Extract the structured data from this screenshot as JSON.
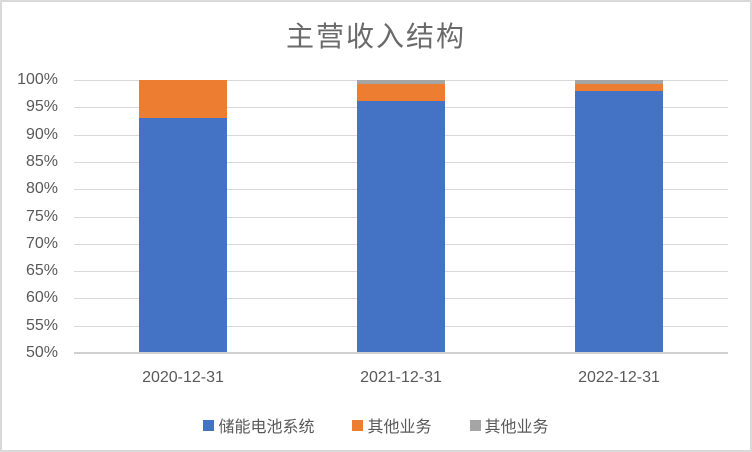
{
  "frame": {
    "background": "#ffffff",
    "border_color": "#d9d9d9"
  },
  "chart_data": {
    "type": "bar",
    "variant": "stacked-column",
    "title": "主营收入结构",
    "categories": [
      "2020-12-31",
      "2021-12-31",
      "2022-12-31"
    ],
    "series": [
      {
        "name": "储能电池系统",
        "color": "#4472C4",
        "values": [
          93.0,
          96.2,
          98.0
        ]
      },
      {
        "name": "其他业务",
        "color": "#ED7D31",
        "values": [
          7.0,
          3.0,
          1.3
        ]
      },
      {
        "name": "其他业务",
        "color": "#A5A5A5",
        "values": [
          0.0,
          0.8,
          0.7
        ]
      }
    ],
    "unit": "%",
    "ylim": [
      50,
      100
    ],
    "ytick_step": 5,
    "ytick_labels": [
      "100%",
      "95%",
      "90%",
      "85%",
      "80%",
      "75%",
      "70%",
      "65%",
      "60%",
      "55%",
      "50%"
    ],
    "grid": true,
    "legend_position": "bottom",
    "colors": {
      "text": "#595959",
      "title": "#6a6a6a",
      "gridline": "#d9d9d9",
      "axis_line": "#d0d0d0"
    }
  }
}
